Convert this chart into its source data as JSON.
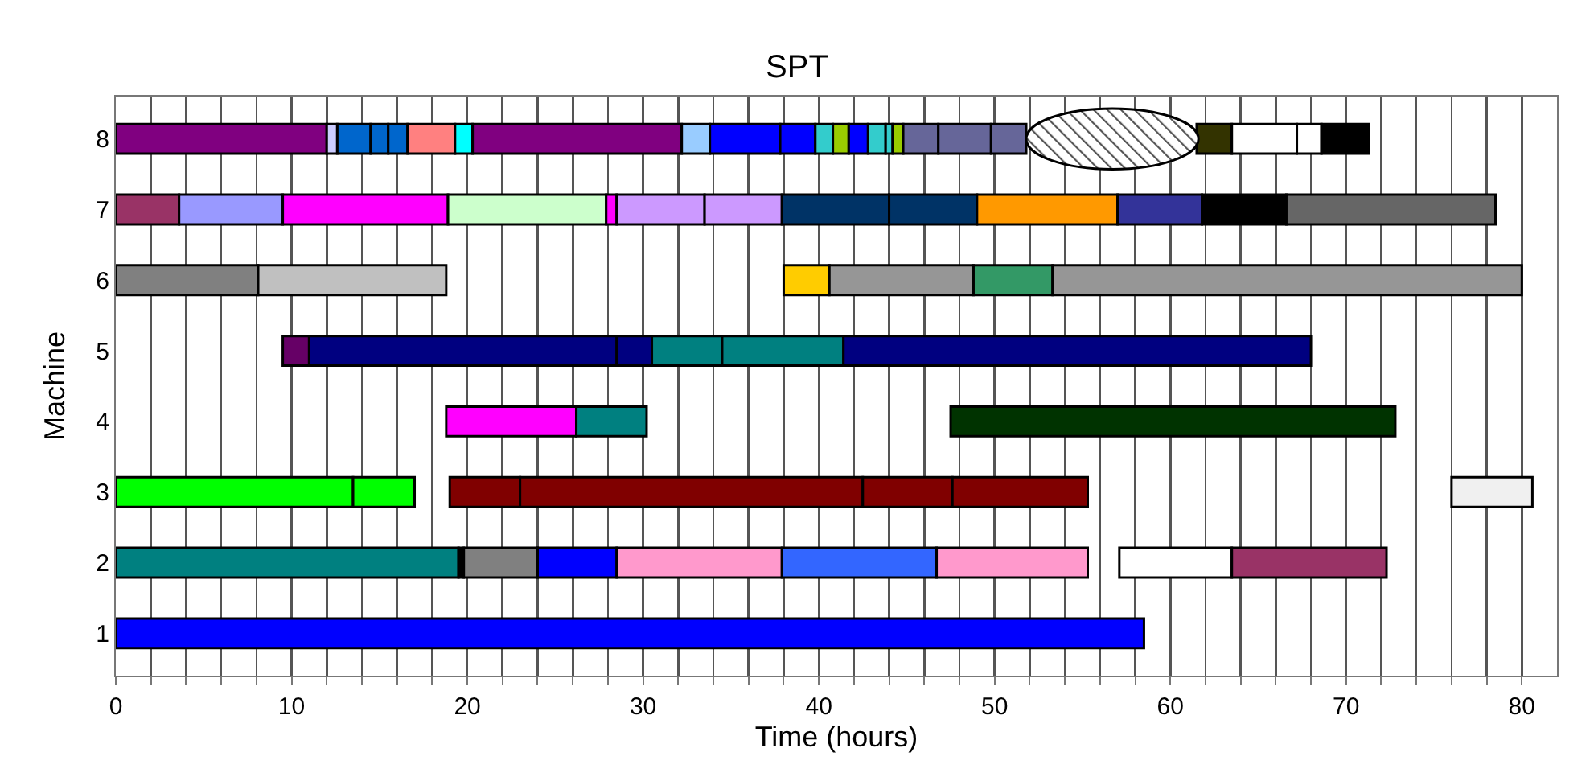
{
  "chart_data": {
    "type": "bar",
    "orientation": "horizontal",
    "title": "SPT",
    "xlabel": "Time (hours)",
    "ylabel": "Machine",
    "categories": [
      "8",
      "7",
      "6",
      "5",
      "4",
      "3",
      "2",
      "1"
    ],
    "xlim": [
      0,
      82
    ],
    "xticks": [
      0,
      {
        "value": 2,
        "label": null
      },
      {
        "value": 4,
        "label": null
      },
      {
        "value": 6,
        "label": null
      },
      {
        "value": 8,
        "label": null
      },
      10,
      {
        "value": 12,
        "label": null
      },
      {
        "value": 14,
        "label": null
      },
      {
        "value": 16,
        "label": null
      },
      {
        "value": 18,
        "label": null
      },
      20,
      {
        "value": 22,
        "label": null
      },
      {
        "value": 24,
        "label": null
      },
      {
        "value": 26,
        "label": null
      },
      {
        "value": 28,
        "label": null
      },
      30,
      {
        "value": 32,
        "label": null
      },
      {
        "value": 34,
        "label": null
      },
      {
        "value": 36,
        "label": null
      },
      {
        "value": 38,
        "label": null
      },
      40,
      {
        "value": 42,
        "label": null
      },
      {
        "value": 44,
        "label": null
      },
      {
        "value": 46,
        "label": null
      },
      {
        "value": 48,
        "label": null
      },
      50,
      {
        "value": 52,
        "label": null
      },
      {
        "value": 54,
        "label": null
      },
      {
        "value": 56,
        "label": null
      },
      {
        "value": 58,
        "label": null
      },
      60,
      {
        "value": 62,
        "label": null
      },
      {
        "value": 64,
        "label": null
      },
      {
        "value": 66,
        "label": null
      },
      {
        "value": 68,
        "label": null
      },
      70,
      {
        "value": 72,
        "label": null
      },
      {
        "value": 74,
        "label": null
      },
      {
        "value": 76,
        "label": null
      },
      {
        "value": 78,
        "label": null
      },
      80
    ],
    "grid": "x",
    "series": [
      {
        "values": [
          12.0,
          3.6,
          8.1,
          1.5,
          7.4,
          13.5,
          19.5,
          58.5
        ],
        "base": [
          0,
          0,
          0,
          9.5,
          18.8,
          0,
          0,
          0
        ],
        "colors": [
          "#800080",
          "#993366",
          "#808080",
          "#660066",
          "#ff00ff",
          "#00ff00",
          "#008080",
          "#0000ff"
        ]
      },
      {
        "values": [
          0.6,
          5.9,
          10.7,
          17.5,
          4.0,
          3.5,
          0.3,
          null
        ],
        "base": [
          12.0,
          3.6,
          8.1,
          11.0,
          26.2,
          13.5,
          19.5,
          null
        ],
        "colors": [
          "#ccccff",
          "#9999ff",
          "#c0c0c0",
          "#000080",
          "#008080",
          "#00ff00",
          "#000000",
          null
        ]
      },
      {
        "values": [
          1.9,
          9.4,
          2.6,
          2.0,
          25.3,
          4.0,
          4.2,
          null
        ],
        "base": [
          12.6,
          9.5,
          38.0,
          28.5,
          47.5,
          19.0,
          19.8,
          null
        ],
        "colors": [
          "#0066cc",
          "#ff00ff",
          "#ffcc00",
          "#000080",
          "#003300",
          "#800000",
          "#808080",
          null
        ]
      },
      {
        "values": [
          1.0,
          9.0,
          8.2,
          4.0,
          null,
          19.5,
          4.5,
          null
        ],
        "base": [
          14.5,
          18.9,
          40.6,
          30.5,
          null,
          23.0,
          24.0,
          null
        ],
        "colors": [
          "#0066cc",
          "#ccffcc",
          "#969696",
          "#008080",
          null,
          "#800000",
          "#0000ff",
          null
        ]
      },
      {
        "values": [
          1.1,
          0.6,
          4.5,
          6.9,
          null,
          5.1,
          9.4,
          null
        ],
        "base": [
          15.5,
          27.9,
          48.8,
          34.5,
          null,
          42.5,
          28.5,
          null
        ],
        "colors": [
          "#0066cc",
          "#ff00ff",
          "#339966",
          "#008080",
          null,
          "#800000",
          "#ff99cc",
          null
        ]
      },
      {
        "values": [
          2.7,
          5.0,
          26.7,
          26.6,
          null,
          7.7,
          8.8,
          null
        ],
        "base": [
          16.6,
          28.5,
          53.3,
          41.4,
          null,
          47.6,
          37.9,
          null
        ],
        "colors": [
          "#ff8080",
          "#cc99ff",
          "#969696",
          "#000080",
          null,
          "#800000",
          "#3366ff",
          null
        ]
      },
      {
        "values": [
          1.0,
          4.4,
          null,
          null,
          null,
          4.6,
          8.6,
          null
        ],
        "base": [
          19.3,
          33.5,
          null,
          null,
          null,
          76.0,
          46.7,
          null
        ],
        "colors": [
          "#00ffff",
          "#cc99ff",
          null,
          null,
          null,
          "#f0f0f0",
          "#ff99cc",
          null
        ]
      },
      {
        "values": [
          11.9,
          6.1,
          null,
          null,
          null,
          null,
          6.4,
          null
        ],
        "base": [
          20.3,
          37.9,
          null,
          null,
          null,
          null,
          57.1,
          null
        ],
        "colors": [
          "#800080",
          "#003366",
          null,
          null,
          null,
          null,
          "#ffffff",
          null
        ]
      },
      {
        "values": [
          1.6,
          5.0,
          null,
          null,
          null,
          null,
          8.8,
          null
        ],
        "base": [
          32.2,
          44.0,
          null,
          null,
          null,
          null,
          63.5,
          null
        ],
        "colors": [
          "#99ccff",
          "#003366",
          null,
          null,
          null,
          null,
          "#993366",
          null
        ]
      },
      {
        "values": [
          4.0,
          8.0,
          null,
          null,
          null,
          null,
          null,
          null
        ],
        "base": [
          33.8,
          49.0,
          null,
          null,
          null,
          null,
          null,
          null
        ],
        "colors": [
          "#0000ff",
          "#ff9900",
          null,
          null,
          null,
          null,
          null,
          null
        ]
      },
      {
        "values": [
          2.0,
          4.8,
          null,
          null,
          null,
          null,
          null,
          null
        ],
        "base": [
          37.8,
          57.0,
          null,
          null,
          null,
          null,
          null,
          null
        ],
        "colors": [
          "#0000ff",
          "#333399",
          null,
          null,
          null,
          null,
          null,
          null
        ]
      },
      {
        "values": [
          1.0,
          4.8,
          null,
          null,
          null,
          null,
          null,
          null
        ],
        "base": [
          39.8,
          61.8,
          null,
          null,
          null,
          null,
          null,
          null
        ],
        "colors": [
          "#33cccc",
          "#000000",
          null,
          null,
          null,
          null,
          null,
          null
        ]
      },
      {
        "values": [
          0.9,
          11.9,
          null,
          null,
          null,
          null,
          null,
          null
        ],
        "base": [
          40.8,
          66.6,
          null,
          null,
          null,
          null,
          null,
          null
        ],
        "colors": [
          "#99cc00",
          "#666666",
          null,
          null,
          null,
          null,
          null,
          null
        ]
      },
      {
        "values": [
          1.1,
          null,
          null,
          null,
          null,
          null,
          null,
          null
        ],
        "base": [
          41.7,
          null,
          null,
          null,
          null,
          null,
          null,
          null
        ],
        "colors": [
          "#0000ff",
          null,
          null,
          null,
          null,
          null,
          null,
          null
        ]
      },
      {
        "values": [
          1.0,
          null,
          null,
          null,
          null,
          null,
          null,
          null
        ],
        "base": [
          42.8,
          null,
          null,
          null,
          null,
          null,
          null,
          null
        ],
        "colors": [
          "#33cccc",
          null,
          null,
          null,
          null,
          null,
          null,
          null
        ]
      },
      {
        "values": [
          0.4,
          null,
          null,
          null,
          null,
          null,
          null,
          null
        ],
        "base": [
          43.8,
          null,
          null,
          null,
          null,
          null,
          null,
          null
        ],
        "colors": [
          "#33cccc",
          null,
          null,
          null,
          null,
          null,
          null,
          null
        ]
      },
      {
        "values": [
          0.6,
          null,
          null,
          null,
          null,
          null,
          null,
          null
        ],
        "base": [
          44.2,
          null,
          null,
          null,
          null,
          null,
          null,
          null
        ],
        "colors": [
          "#99cc00",
          null,
          null,
          null,
          null,
          null,
          null,
          null
        ]
      },
      {
        "values": [
          2.0,
          null,
          null,
          null,
          null,
          null,
          null,
          null
        ],
        "base": [
          44.8,
          null,
          null,
          null,
          null,
          null,
          null,
          null
        ],
        "colors": [
          "#666699",
          null,
          null,
          null,
          null,
          null,
          null,
          null
        ]
      },
      {
        "values": [
          3.0,
          null,
          null,
          null,
          null,
          null,
          null,
          null
        ],
        "base": [
          46.8,
          null,
          null,
          null,
          null,
          null,
          null,
          null
        ],
        "colors": [
          "#666699",
          null,
          null,
          null,
          null,
          null,
          null,
          null
        ]
      },
      {
        "values": [
          2.0,
          null,
          null,
          null,
          null,
          null,
          null,
          null
        ],
        "base": [
          49.8,
          null,
          null,
          null,
          null,
          null,
          null,
          null
        ],
        "colors": [
          "#666699",
          null,
          null,
          null,
          null,
          null,
          null,
          null
        ]
      },
      {
        "values": [
          2.0,
          null,
          null,
          null,
          null,
          null,
          null,
          null
        ],
        "base": [
          61.5,
          null,
          null,
          null,
          null,
          null,
          null,
          null
        ],
        "colors": [
          "#333300",
          null,
          null,
          null,
          null,
          null,
          null,
          null
        ]
      },
      {
        "values": [
          3.7,
          null,
          null,
          null,
          null,
          null,
          null,
          null
        ],
        "base": [
          63.5,
          null,
          null,
          null,
          null,
          null,
          null,
          null
        ],
        "colors": [
          "#ffffff",
          null,
          null,
          null,
          null,
          null,
          null,
          null
        ]
      },
      {
        "values": [
          1.4,
          null,
          null,
          null,
          null,
          null,
          null,
          null
        ],
        "base": [
          67.2,
          null,
          null,
          null,
          null,
          null,
          null,
          null
        ],
        "colors": [
          "#ffffff",
          null,
          null,
          null,
          null,
          null,
          null,
          null
        ]
      },
      {
        "values": [
          2.7,
          null,
          null,
          null,
          null,
          null,
          null,
          null
        ],
        "base": [
          68.6,
          null,
          null,
          null,
          null,
          null,
          null,
          null
        ],
        "colors": [
          "#000000",
          null,
          null,
          null,
          null,
          null,
          null,
          null
        ]
      }
    ]
  }
}
